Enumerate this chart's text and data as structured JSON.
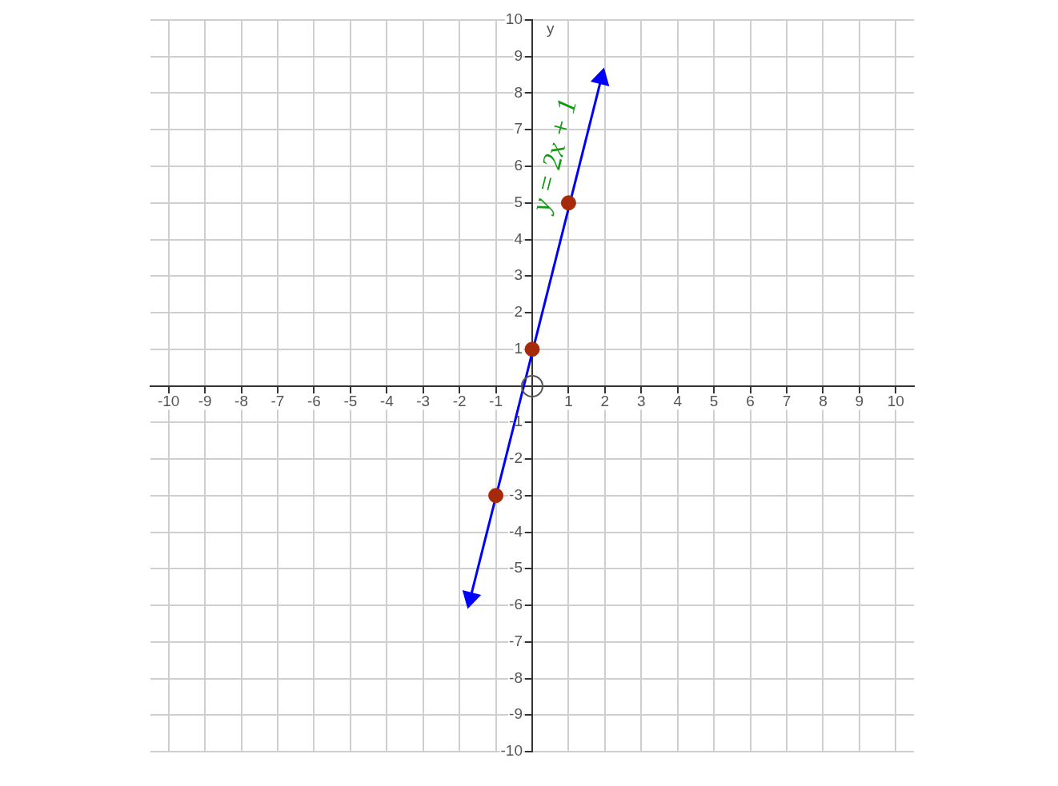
{
  "chart_data": {
    "type": "line",
    "ylabel": "y",
    "xlim": [
      -10.5,
      10.5
    ],
    "ylim": [
      -10,
      10
    ],
    "xticks": [
      -10,
      -9,
      -8,
      -7,
      -6,
      -5,
      -4,
      -3,
      -2,
      -1,
      1,
      2,
      3,
      4,
      5,
      6,
      7,
      8,
      9,
      10
    ],
    "yticks": [
      -10,
      -9,
      -8,
      -7,
      -6,
      -5,
      -4,
      -3,
      -2,
      -1,
      1,
      2,
      3,
      4,
      5,
      6,
      7,
      8,
      9,
      10
    ],
    "grid": true,
    "legend": false,
    "series": [
      {
        "color": "#0000ff",
        "x": [
          -1.7,
          1.9
        ],
        "values": [
          -5.8,
          8.4
        ],
        "marker": "triangle"
      },
      {
        "type": "scatter",
        "color": "#a52a0a",
        "x": [
          -1,
          0,
          1
        ],
        "values": [
          -3,
          1,
          5
        ],
        "marker": "circle"
      }
    ],
    "annotations": [
      "y = 2x + 1"
    ]
  }
}
